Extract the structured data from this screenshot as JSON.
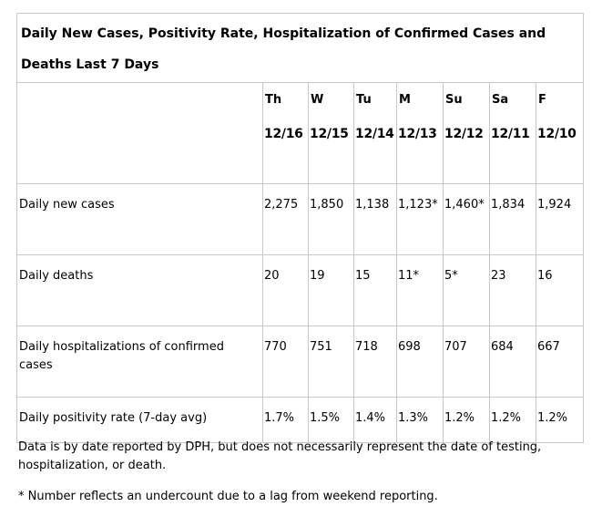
{
  "table": {
    "title": "Daily New Cases, Positivity Rate, Hospitalization of Confirmed Cases and Deaths Last 7 Days",
    "days": [
      {
        "dow": "Th",
        "date": "12/16"
      },
      {
        "dow": "W",
        "date": "12/15"
      },
      {
        "dow": "Tu",
        "date": "12/14"
      },
      {
        "dow": "M",
        "date": "12/13"
      },
      {
        "dow": "Su",
        "date": "12/12"
      },
      {
        "dow": "Sa",
        "date": "12/11"
      },
      {
        "dow": "F",
        "date": "12/10"
      }
    ],
    "rows": [
      {
        "label": "Daily new cases",
        "values": [
          "2,275",
          "1,850",
          "1,138",
          "1,123*",
          "1,460*",
          "1,834",
          "1,924"
        ]
      },
      {
        "label": "Daily deaths",
        "values": [
          "20",
          "19",
          "15",
          "11*",
          "5*",
          "23",
          "16"
        ]
      },
      {
        "label": "Daily hospitalizations of confirmed cases",
        "values": [
          "770",
          "751",
          "718",
          "698",
          "707",
          "684",
          "667"
        ]
      },
      {
        "label": "Daily positivity rate (7-day avg)",
        "values": [
          "1.7%",
          "1.5%",
          "1.4%",
          "1.3%",
          "1.2%",
          "1.2%",
          "1.2%"
        ]
      }
    ]
  },
  "notes": {
    "source": "Data is by date reported by DPH, but does not necessarily represent the date of testing, hospitalization, or death.",
    "asterisk": "* Number reflects an undercount due to a lag from weekend reporting."
  }
}
